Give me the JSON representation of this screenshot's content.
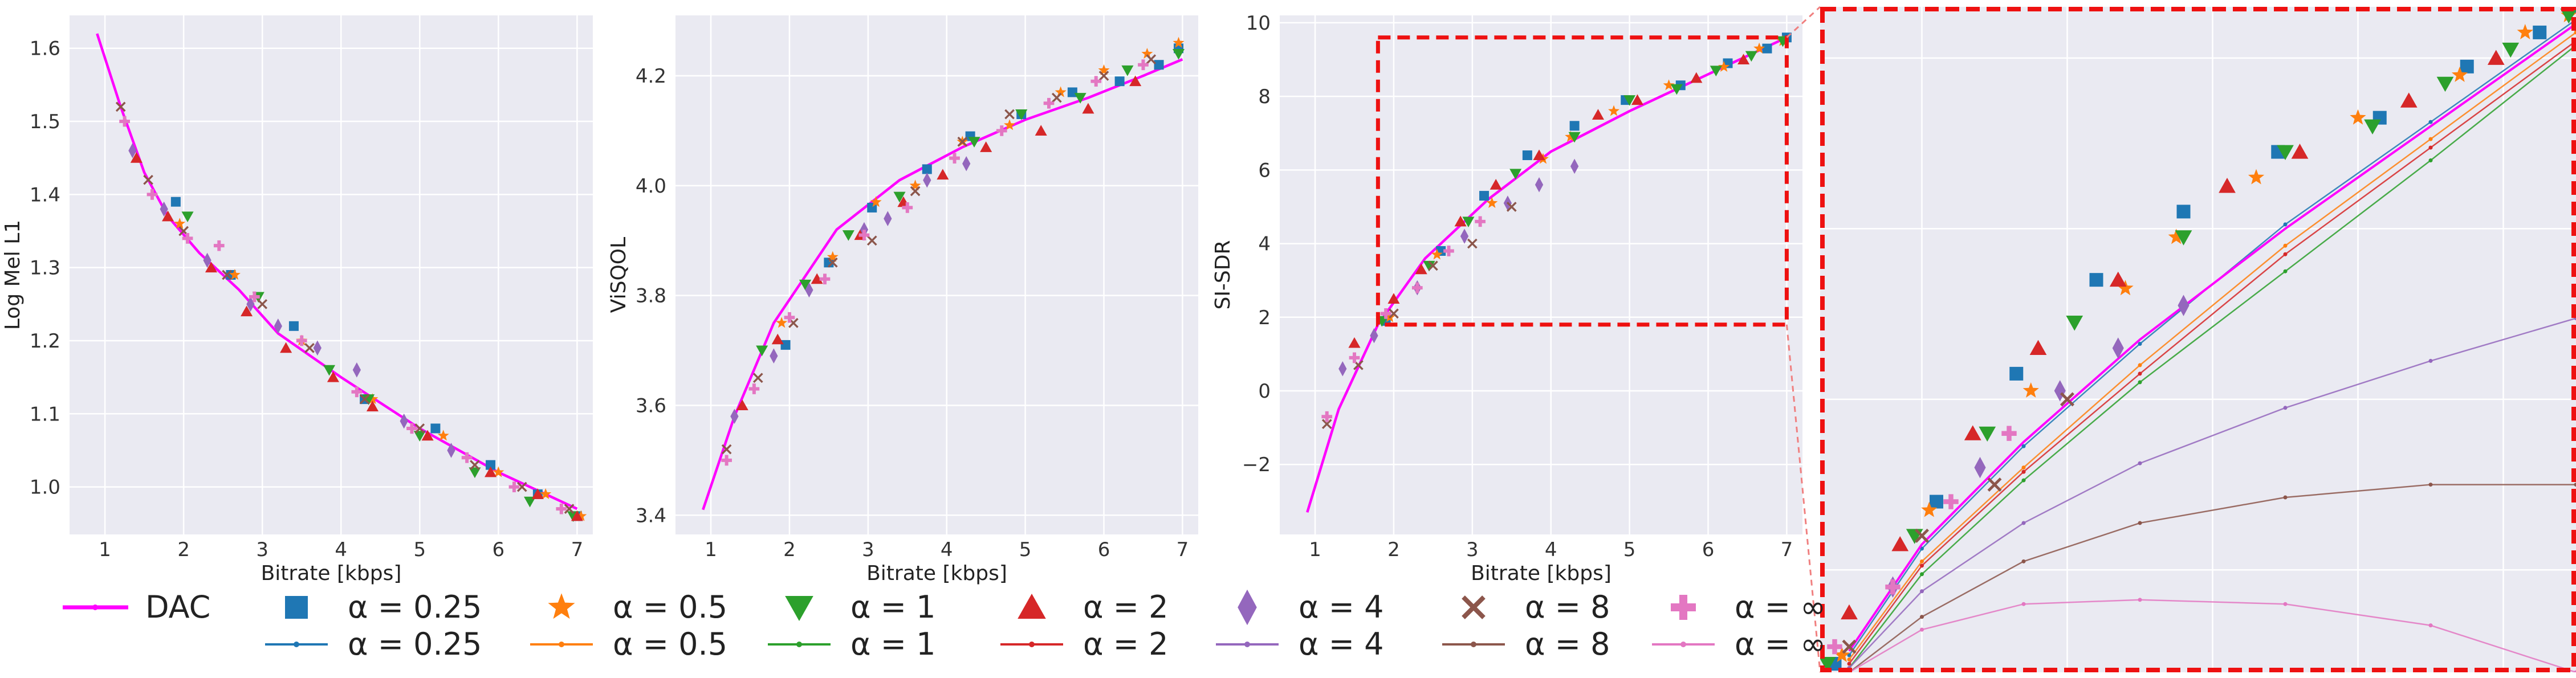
{
  "figure": {
    "legend": {
      "dac_label": "DAC",
      "entries": [
        {
          "alpha": "0.25",
          "marker": "square",
          "color": "#1f77b4",
          "label": "α = 0.25"
        },
        {
          "alpha": "0.5",
          "marker": "star",
          "color": "#ff7f0e",
          "label": "α = 0.5"
        },
        {
          "alpha": "1",
          "marker": "triangle-down",
          "color": "#2ca02c",
          "label": "α = 1"
        },
        {
          "alpha": "2",
          "marker": "triangle-up",
          "color": "#d62728",
          "label": "α = 2"
        },
        {
          "alpha": "4",
          "marker": "diamond",
          "color": "#9467bd",
          "label": "α = 4"
        },
        {
          "alpha": "8",
          "marker": "x",
          "color": "#8c564b",
          "label": "α = 8"
        },
        {
          "alpha": "∞",
          "marker": "plus",
          "color": "#e377c2",
          "label": "α = ∞"
        }
      ],
      "dac_color": "#ff00ff"
    }
  },
  "chart_data": [
    {
      "type": "scatter",
      "id": "logmel",
      "xlabel": "Bitrate [kbps]",
      "ylabel": "Log Mel L1",
      "xlim": [
        0.55,
        7.2
      ],
      "ylim": [
        0.935,
        1.645
      ],
      "xticks": [
        1,
        2,
        3,
        4,
        5,
        6,
        7
      ],
      "yticks": [
        1.0,
        1.1,
        1.2,
        1.3,
        1.4,
        1.5,
        1.6
      ],
      "ytick_labels": [
        "1.0",
        "1.1",
        "1.2",
        "1.3",
        "1.4",
        "1.5",
        "1.6"
      ],
      "dac_line": {
        "x": [
          0.9,
          1.2,
          1.5,
          1.8,
          2.2,
          2.7,
          3.2,
          4,
          5,
          6,
          7
        ],
        "y": [
          1.62,
          1.52,
          1.43,
          1.37,
          1.32,
          1.27,
          1.21,
          1.15,
          1.08,
          1.02,
          0.97
        ]
      },
      "series": [
        {
          "alpha": "0.25",
          "x": [
            1.9,
            2.6,
            3.4,
            4.3,
            5.2,
            5.9,
            6.5,
            7.0
          ],
          "y": [
            1.39,
            1.29,
            1.22,
            1.12,
            1.08,
            1.03,
            0.99,
            0.96
          ]
        },
        {
          "alpha": "0.5",
          "x": [
            1.95,
            2.65,
            3.5,
            4.4,
            5.3,
            6.0,
            6.6,
            7.05
          ],
          "y": [
            1.36,
            1.29,
            1.2,
            1.12,
            1.07,
            1.02,
            0.99,
            0.96
          ]
        },
        {
          "alpha": "1",
          "x": [
            2.05,
            2.95,
            3.85,
            4.35,
            5.0,
            5.7,
            6.4,
            6.95
          ],
          "y": [
            1.37,
            1.26,
            1.16,
            1.12,
            1.07,
            1.02,
            0.98,
            0.96
          ]
        },
        {
          "alpha": "2",
          "x": [
            1.4,
            1.8,
            2.35,
            2.8,
            3.3,
            3.9,
            4.4,
            5.1,
            5.9,
            6.5,
            7.0
          ],
          "y": [
            1.45,
            1.37,
            1.3,
            1.24,
            1.19,
            1.15,
            1.11,
            1.07,
            1.02,
            0.99,
            0.96
          ]
        },
        {
          "alpha": "4",
          "x": [
            1.35,
            1.75,
            2.3,
            2.85,
            3.2,
            3.7,
            4.2,
            4.8,
            5.4
          ],
          "y": [
            1.46,
            1.38,
            1.31,
            1.25,
            1.22,
            1.19,
            1.16,
            1.09,
            1.05
          ]
        },
        {
          "alpha": "8",
          "x": [
            1.2,
            1.55,
            2.0,
            2.55,
            3.0,
            3.6,
            4.3,
            5.0,
            5.7,
            6.3,
            6.9
          ],
          "y": [
            1.52,
            1.42,
            1.35,
            1.29,
            1.25,
            1.19,
            1.12,
            1.08,
            1.03,
            1.0,
            0.97
          ]
        },
        {
          "alpha": "∞",
          "x": [
            1.25,
            1.6,
            2.05,
            2.45,
            2.9,
            3.5,
            4.2,
            4.9,
            5.6,
            6.2,
            6.8
          ],
          "y": [
            1.5,
            1.4,
            1.34,
            1.33,
            1.26,
            1.2,
            1.13,
            1.08,
            1.04,
            1.0,
            0.97
          ]
        }
      ]
    },
    {
      "type": "scatter",
      "id": "visqol",
      "xlabel": "Bitrate [kbps]",
      "ylabel": "ViSQOL",
      "xlim": [
        0.55,
        7.2
      ],
      "ylim": [
        3.365,
        4.31
      ],
      "xticks": [
        1,
        2,
        3,
        4,
        5,
        6,
        7
      ],
      "yticks": [
        3.4,
        3.6,
        3.8,
        4.0,
        4.2
      ],
      "ytick_labels": [
        "3.4",
        "3.6",
        "3.8",
        "4.0",
        "4.2"
      ],
      "dac_line": {
        "x": [
          0.9,
          1.3,
          1.8,
          2.6,
          3.4,
          4.2,
          5.0,
          5.8,
          6.5,
          7.0
        ],
        "y": [
          3.41,
          3.58,
          3.75,
          3.92,
          4.01,
          4.07,
          4.12,
          4.16,
          4.2,
          4.23
        ]
      },
      "series": [
        {
          "alpha": "0.25",
          "x": [
            1.95,
            2.5,
            3.05,
            3.75,
            4.3,
            4.95,
            5.6,
            6.2,
            6.7,
            6.95
          ],
          "y": [
            3.71,
            3.86,
            3.96,
            4.03,
            4.09,
            4.13,
            4.17,
            4.19,
            4.22,
            4.25
          ]
        },
        {
          "alpha": "0.5",
          "x": [
            1.9,
            2.55,
            3.1,
            3.6,
            4.2,
            4.8,
            5.45,
            6.0,
            6.55,
            6.95
          ],
          "y": [
            3.75,
            3.87,
            3.97,
            4.0,
            4.08,
            4.11,
            4.17,
            4.21,
            4.24,
            4.26
          ]
        },
        {
          "alpha": "1",
          "x": [
            1.65,
            2.2,
            2.75,
            3.4,
            4.35,
            4.95,
            5.7,
            6.3,
            6.95
          ],
          "y": [
            3.7,
            3.82,
            3.91,
            3.98,
            4.08,
            4.13,
            4.16,
            4.21,
            4.24
          ]
        },
        {
          "alpha": "2",
          "x": [
            1.4,
            1.85,
            2.35,
            2.9,
            3.45,
            3.95,
            4.5,
            5.2,
            5.8,
            6.4
          ],
          "y": [
            3.6,
            3.72,
            3.83,
            3.91,
            3.97,
            4.02,
            4.07,
            4.1,
            4.14,
            4.19
          ]
        },
        {
          "alpha": "4",
          "x": [
            1.3,
            1.8,
            2.25,
            2.95,
            3.25,
            3.75,
            4.25
          ],
          "y": [
            3.58,
            3.69,
            3.81,
            3.92,
            3.94,
            4.01,
            4.04
          ]
        },
        {
          "alpha": "8",
          "x": [
            1.2,
            1.6,
            2.05,
            2.55,
            3.05,
            3.6,
            4.2,
            4.8,
            5.4,
            6.0,
            6.6
          ],
          "y": [
            3.52,
            3.65,
            3.75,
            3.86,
            3.9,
            3.99,
            4.08,
            4.13,
            4.16,
            4.2,
            4.23
          ]
        },
        {
          "alpha": "∞",
          "x": [
            1.2,
            1.55,
            2.0,
            2.45,
            2.95,
            3.5,
            4.1,
            4.7,
            5.3,
            5.9,
            6.5
          ],
          "y": [
            3.5,
            3.63,
            3.76,
            3.83,
            3.91,
            3.96,
            4.05,
            4.1,
            4.15,
            4.19,
            4.22
          ]
        }
      ]
    },
    {
      "type": "scatter",
      "id": "sisdr",
      "xlabel": "Bitrate [kbps]",
      "ylabel": "SI-SDR",
      "xlim": [
        0.55,
        7.2
      ],
      "ylim": [
        -3.9,
        10.2
      ],
      "xticks": [
        1,
        2,
        3,
        4,
        5,
        6,
        7
      ],
      "yticks": [
        -2,
        0,
        2,
        4,
        6,
        8,
        10
      ],
      "ytick_labels": [
        "−2",
        "0",
        "2",
        "4",
        "6",
        "8",
        "10"
      ],
      "zoom_box": {
        "x0": 1.8,
        "x1": 7.0,
        "y0": 1.8,
        "y1": 9.6
      },
      "dac_line": {
        "x": [
          0.9,
          1.3,
          1.8,
          2.4,
          3.2,
          4.0,
          5.0,
          6.0,
          7.0
        ],
        "y": [
          -3.3,
          -0.5,
          1.8,
          3.6,
          5.2,
          6.5,
          7.6,
          8.6,
          9.6
        ]
      },
      "series": [
        {
          "alpha": "0.25",
          "x": [
            1.9,
            2.6,
            3.15,
            3.7,
            4.3,
            4.95,
            5.65,
            6.25,
            6.75,
            7.0
          ],
          "y": [
            1.9,
            3.8,
            5.3,
            6.4,
            7.2,
            7.9,
            8.3,
            8.9,
            9.3,
            9.6
          ]
        },
        {
          "alpha": "0.5",
          "x": [
            1.95,
            2.55,
            3.25,
            3.9,
            4.25,
            4.8,
            5.5,
            6.2,
            6.65,
            6.95
          ],
          "y": [
            2.0,
            3.7,
            5.1,
            6.3,
            6.9,
            7.6,
            8.3,
            8.8,
            9.3,
            9.5
          ]
        },
        {
          "alpha": "1",
          "x": [
            1.85,
            2.45,
            2.95,
            3.55,
            4.3,
            5.0,
            5.6,
            6.1,
            6.55,
            6.95
          ],
          "y": [
            1.9,
            3.4,
            4.6,
            5.9,
            6.9,
            7.9,
            8.2,
            8.7,
            9.1,
            9.5
          ]
        },
        {
          "alpha": "2",
          "x": [
            1.5,
            2.0,
            2.35,
            2.85,
            3.3,
            3.85,
            4.6,
            5.1,
            5.85,
            6.45
          ],
          "y": [
            1.3,
            2.5,
            3.3,
            4.6,
            5.6,
            6.4,
            7.5,
            7.9,
            8.5,
            9.0
          ]
        },
        {
          "alpha": "4",
          "x": [
            1.35,
            1.75,
            2.3,
            2.9,
            3.45,
            3.85,
            4.3
          ],
          "y": [
            0.6,
            1.5,
            2.8,
            4.2,
            5.1,
            5.6,
            6.1
          ]
        },
        {
          "alpha": "8",
          "x": [
            1.15,
            1.55,
            2.0,
            2.5,
            3.0,
            3.5
          ],
          "y": [
            -0.9,
            0.7,
            2.1,
            3.4,
            4.0,
            5.0
          ]
        },
        {
          "alpha": "∞",
          "x": [
            1.15,
            1.5,
            1.9,
            2.3,
            2.7,
            3.1
          ],
          "y": [
            -0.7,
            0.9,
            2.1,
            2.8,
            3.8,
            4.6
          ]
        }
      ]
    },
    {
      "type": "line",
      "id": "inset",
      "description_values": "zoomed SI-SDR view with per-alpha curves",
      "xlim": [
        1.8,
        7.0
      ],
      "ylim": [
        1.8,
        9.6
      ],
      "dac_line": {
        "x": [
          2.0,
          2.5,
          3.2,
          4.0,
          5.0,
          6.0,
          7.0
        ],
        "y": [
          2.05,
          3.3,
          4.5,
          5.7,
          7.0,
          8.2,
          9.4
        ]
      },
      "series": [
        {
          "alpha": "0.25",
          "line_x": [
            2.0,
            2.5,
            3.2,
            4.0,
            5.0,
            6.0,
            7.0
          ],
          "line_y": [
            2.0,
            3.25,
            4.45,
            5.65,
            7.05,
            8.25,
            9.45
          ]
        },
        {
          "alpha": "0.5",
          "line_x": [
            2.0,
            2.5,
            3.2,
            4.0,
            5.0,
            6.0,
            7.0
          ],
          "line_y": [
            1.95,
            3.1,
            4.2,
            5.4,
            6.8,
            8.05,
            9.3
          ]
        },
        {
          "alpha": "1",
          "line_x": [
            2.0,
            2.5,
            3.2,
            4.0,
            5.0,
            6.0,
            7.0
          ],
          "line_y": [
            1.85,
            2.95,
            4.05,
            5.2,
            6.5,
            7.8,
            9.15
          ]
        },
        {
          "alpha": "2",
          "line_x": [
            2.0,
            2.5,
            3.2,
            4.0,
            5.0,
            6.0,
            7.0
          ],
          "line_y": [
            1.9,
            3.05,
            4.15,
            5.3,
            6.7,
            7.95,
            9.2
          ]
        },
        {
          "alpha": "4",
          "line_x": [
            2.0,
            2.5,
            3.2,
            4.0,
            5.0,
            6.0,
            7.0
          ],
          "line_y": [
            1.85,
            2.75,
            3.55,
            4.25,
            4.9,
            5.45,
            5.95
          ]
        },
        {
          "alpha": "8",
          "line_x": [
            2.0,
            2.5,
            3.2,
            4.0,
            5.0,
            6.0,
            7.0
          ],
          "line_y": [
            1.8,
            2.45,
            3.1,
            3.55,
            3.85,
            4.0,
            4.0
          ]
        },
        {
          "alpha": "∞",
          "line_x": [
            2.0,
            2.5,
            3.2,
            4.0,
            5.0,
            6.0,
            7.0
          ],
          "line_y": [
            1.8,
            2.3,
            2.6,
            2.65,
            2.6,
            2.35,
            1.8
          ]
        }
      ]
    }
  ]
}
